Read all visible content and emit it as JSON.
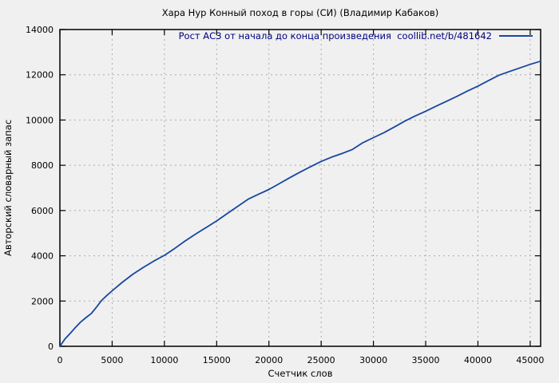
{
  "colors": {
    "background": "#f0f0f0",
    "border": "#000000",
    "grid": "#ababab",
    "text": "#000000",
    "legend_text": "#000080",
    "line": "#17479e"
  },
  "chart_data": {
    "type": "line",
    "title": "Хара Нур Конный поход в горы (СИ) (Владимир Кабаков)",
    "xlabel": "Счетчик слов",
    "ylabel": "Авторский словарный запас",
    "xlim": [
      0,
      46000
    ],
    "ylim": [
      0,
      14000
    ],
    "xticks": [
      0,
      5000,
      10000,
      15000,
      20000,
      25000,
      30000,
      35000,
      40000,
      45000
    ],
    "yticks": [
      0,
      2000,
      4000,
      6000,
      8000,
      10000,
      12000,
      14000
    ],
    "grid": true,
    "legend_position": "top-center-inside",
    "series": [
      {
        "name": "Рост АСЗ от начала до конца произведения  coollib.net/b/481642",
        "color": "#17479e",
        "points": [
          [
            0,
            0
          ],
          [
            500,
            330
          ],
          [
            1000,
            580
          ],
          [
            1500,
            840
          ],
          [
            2000,
            1080
          ],
          [
            2500,
            1270
          ],
          [
            3000,
            1450
          ],
          [
            3500,
            1730
          ],
          [
            4000,
            2030
          ],
          [
            4500,
            2250
          ],
          [
            5000,
            2450
          ],
          [
            6000,
            2840
          ],
          [
            7000,
            3190
          ],
          [
            8000,
            3490
          ],
          [
            9000,
            3770
          ],
          [
            10000,
            4020
          ],
          [
            11000,
            4330
          ],
          [
            12000,
            4660
          ],
          [
            13000,
            4960
          ],
          [
            14000,
            5250
          ],
          [
            15000,
            5540
          ],
          [
            16000,
            5860
          ],
          [
            17000,
            6180
          ],
          [
            18000,
            6500
          ],
          [
            19000,
            6720
          ],
          [
            20000,
            6930
          ],
          [
            21000,
            7190
          ],
          [
            22000,
            7450
          ],
          [
            23000,
            7700
          ],
          [
            24000,
            7940
          ],
          [
            25000,
            8170
          ],
          [
            26000,
            8360
          ],
          [
            27000,
            8520
          ],
          [
            28000,
            8700
          ],
          [
            29000,
            9000
          ],
          [
            30000,
            9220
          ],
          [
            31000,
            9440
          ],
          [
            32000,
            9690
          ],
          [
            33000,
            9950
          ],
          [
            34000,
            10180
          ],
          [
            35000,
            10390
          ],
          [
            36000,
            10610
          ],
          [
            37000,
            10830
          ],
          [
            38000,
            11050
          ],
          [
            39000,
            11280
          ],
          [
            40000,
            11500
          ],
          [
            41000,
            11740
          ],
          [
            42000,
            11980
          ],
          [
            43000,
            12140
          ],
          [
            44000,
            12300
          ],
          [
            45000,
            12460
          ],
          [
            46000,
            12600
          ]
        ]
      }
    ]
  }
}
